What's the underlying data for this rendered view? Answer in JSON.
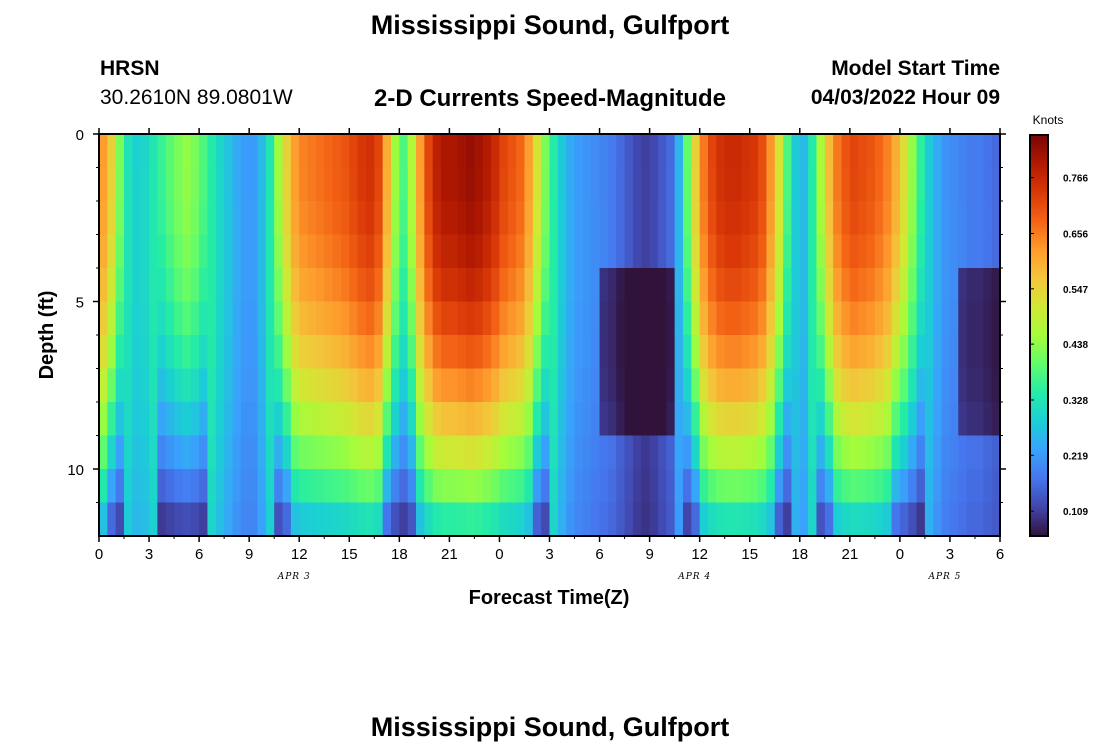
{
  "header": {
    "title": "Mississippi Sound, Gulfport",
    "station_code": "HRSN",
    "coords": "30.2610N  89.0801W",
    "subtitle": "2-D Currents Speed-Magnitude",
    "model_start_label": "Model Start Time",
    "model_start_value": "04/03/2022 Hour 09"
  },
  "footer": {
    "title": "Mississippi Sound, Gulfport"
  },
  "colors": {
    "ramp": [
      "#30123b",
      "#4145ab",
      "#4675ed",
      "#39a2fc",
      "#1bcfd4",
      "#24eca6",
      "#61fc6c",
      "#a4fc3b",
      "#d1e834",
      "#f3c63a",
      "#fe9b2d",
      "#f36315",
      "#d93807",
      "#b11901",
      "#7a0403"
    ]
  },
  "chart_data": {
    "type": "heatmap",
    "title": "Mississippi Sound, Gulfport",
    "subtitle": "2-D Currents Speed-Magnitude",
    "xlabel": "Forecast Time(Z)",
    "ylabel": "Depth (ft)",
    "x_range_hours": [
      0,
      54
    ],
    "x_ticks": [
      {
        "h": 0,
        "label": "0"
      },
      {
        "h": 3,
        "label": "3"
      },
      {
        "h": 6,
        "label": "6"
      },
      {
        "h": 9,
        "label": "9"
      },
      {
        "h": 12,
        "label": "12"
      },
      {
        "h": 15,
        "label": "15"
      },
      {
        "h": 18,
        "label": "18"
      },
      {
        "h": 21,
        "label": "21"
      },
      {
        "h": 24,
        "label": "0"
      },
      {
        "h": 27,
        "label": "3"
      },
      {
        "h": 30,
        "label": "6"
      },
      {
        "h": 33,
        "label": "9"
      },
      {
        "h": 36,
        "label": "12"
      },
      {
        "h": 39,
        "label": "15"
      },
      {
        "h": 42,
        "label": "18"
      },
      {
        "h": 45,
        "label": "21"
      },
      {
        "h": 48,
        "label": "0"
      },
      {
        "h": 51,
        "label": "3"
      },
      {
        "h": 54,
        "label": "6"
      }
    ],
    "date_labels": [
      {
        "h": 12,
        "label": "APR 3"
      },
      {
        "h": 36,
        "label": "APR 4"
      },
      {
        "h": 51,
        "label": "APR 5"
      }
    ],
    "y_range_ft": [
      0,
      12
    ],
    "y_ticks": [
      {
        "v": 0,
        "label": "0"
      },
      {
        "v": 5,
        "label": "5"
      },
      {
        "v": 10,
        "label": "10"
      }
    ],
    "colorbar": {
      "unit": "Knots",
      "range": [
        0.06,
        0.85
      ],
      "ticks": [
        {
          "v": 0.109,
          "label": "0.109"
        },
        {
          "v": 0.219,
          "label": "0.219"
        },
        {
          "v": 0.328,
          "label": "0.328"
        },
        {
          "v": 0.438,
          "label": "0.438"
        },
        {
          "v": 0.547,
          "label": "0.547"
        },
        {
          "v": 0.656,
          "label": "0.656"
        },
        {
          "v": 0.766,
          "label": "0.766"
        }
      ]
    },
    "depth_levels_ft": [
      0.5,
      1.5,
      2.5,
      3.5,
      4.5,
      5.5,
      6.5,
      7.5,
      8.5,
      9.5,
      10.5,
      11.5
    ],
    "profiles": {
      "v": [
        0.71,
        0.8,
        0.12,
        0.27,
        0.18,
        0.29,
        0.13,
        0.21
      ],
      "v2": [
        0.69,
        0.45,
        0.15,
        0.23,
        0.15,
        0.18,
        0.14,
        0.14
      ]
    },
    "times_hours": [
      0,
      0.5,
      1,
      1.5,
      2,
      2.5,
      3,
      3.5,
      4,
      4.5,
      5,
      5.5,
      6,
      6.5,
      7,
      7.5,
      8,
      8.5,
      9,
      9.5,
      10,
      10.5,
      11,
      11.5,
      12,
      12.5,
      13,
      13.5,
      14,
      14.5,
      15,
      15.5,
      16,
      16.5,
      17,
      17.5,
      18,
      18.5,
      19,
      19.5,
      20,
      20.5,
      21,
      21.5,
      22,
      22.5,
      23,
      23.5,
      24,
      24.5,
      25,
      25.5,
      26,
      26.5,
      27,
      27.5,
      28,
      28.5,
      29,
      29.5,
      30,
      30.5,
      31,
      31.5,
      32,
      32.5,
      33,
      33.5,
      34,
      34.5,
      35,
      35.5,
      36,
      36.5,
      37,
      37.5,
      38,
      38.5,
      39,
      39.5,
      40,
      40.5,
      41,
      41.5,
      42,
      42.5,
      43,
      43.5,
      44,
      44.5,
      45,
      45.5,
      46,
      46.5,
      47,
      47.5,
      48,
      48.5,
      49,
      49.5,
      50,
      50.5,
      51,
      51.5,
      52,
      52.5,
      53,
      53.5
    ],
    "surface_speed_knots": [
      0.62,
      0.55,
      0.42,
      0.32,
      0.29,
      0.3,
      0.33,
      0.36,
      0.39,
      0.42,
      0.44,
      0.42,
      0.38,
      0.34,
      0.3,
      0.27,
      0.24,
      0.22,
      0.22,
      0.26,
      0.33,
      0.45,
      0.55,
      0.62,
      0.65,
      0.66,
      0.67,
      0.68,
      0.69,
      0.7,
      0.72,
      0.74,
      0.75,
      0.72,
      0.6,
      0.45,
      0.38,
      0.47,
      0.62,
      0.72,
      0.78,
      0.8,
      0.8,
      0.81,
      0.82,
      0.81,
      0.79,
      0.76,
      0.72,
      0.7,
      0.68,
      0.62,
      0.52,
      0.42,
      0.34,
      0.28,
      0.24,
      0.22,
      0.21,
      0.2,
      0.19,
      0.18,
      0.16,
      0.14,
      0.12,
      0.11,
      0.12,
      0.14,
      0.16,
      0.25,
      0.4,
      0.55,
      0.66,
      0.72,
      0.75,
      0.76,
      0.76,
      0.75,
      0.74,
      0.71,
      0.63,
      0.52,
      0.38,
      0.28,
      0.26,
      0.34,
      0.46,
      0.58,
      0.66,
      0.7,
      0.72,
      0.71,
      0.7,
      0.68,
      0.65,
      0.6,
      0.53,
      0.44,
      0.35,
      0.28,
      0.24,
      0.21,
      0.2,
      0.19,
      0.18,
      0.18,
      0.17,
      0.16
    ]
  }
}
